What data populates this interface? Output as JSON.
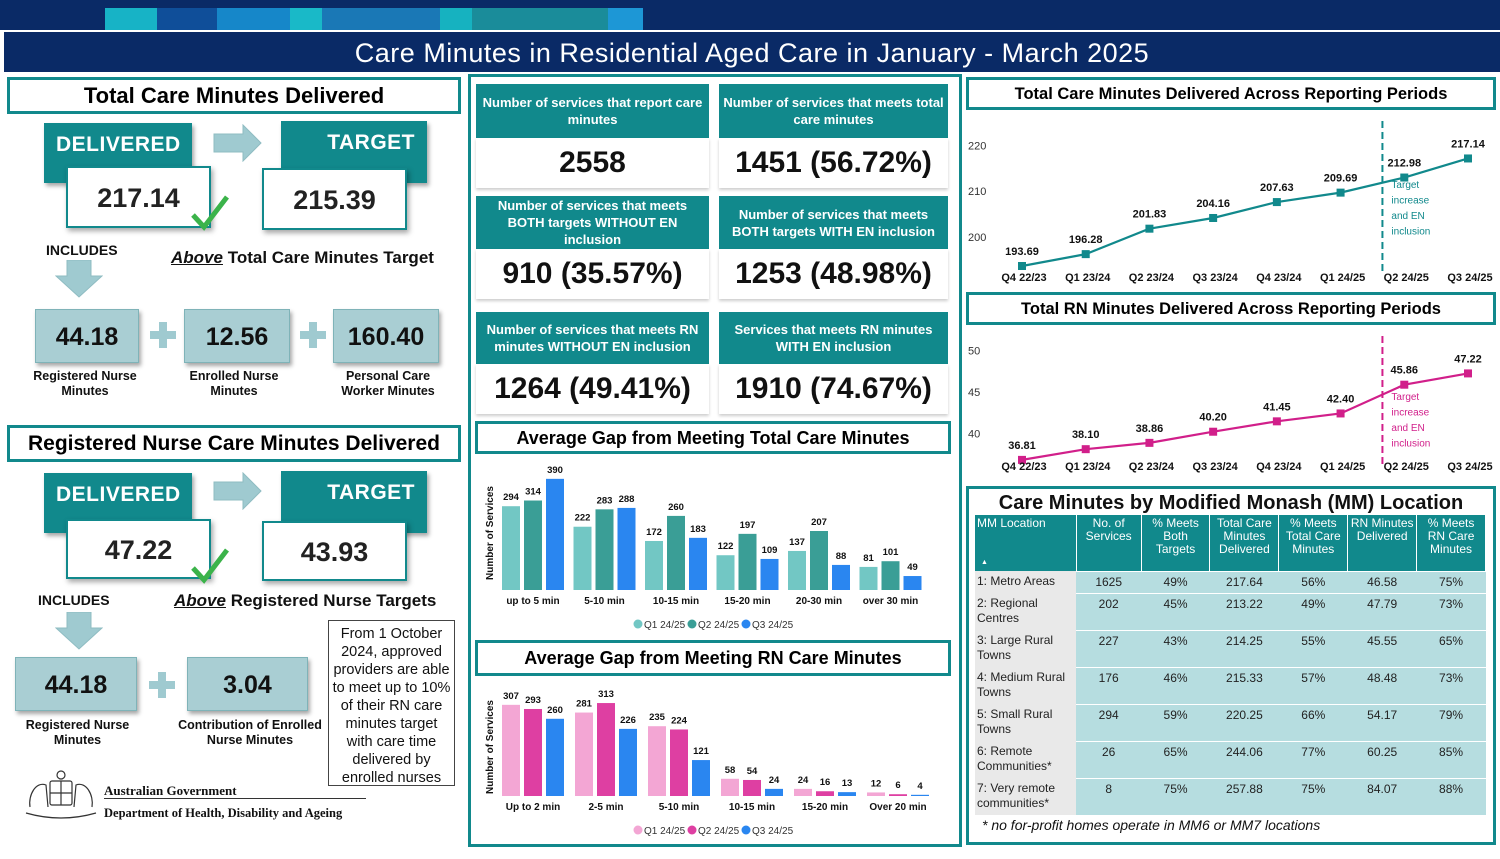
{
  "title": "Care Minutes in Residential Aged Care in January - March 2025",
  "total_section": {
    "header": "Total Care Minutes Delivered",
    "delivered_label": "DELIVERED",
    "target_label": "TARGET",
    "delivered_value": "217.14",
    "target_value": "215.39",
    "includes_label": "INCLUDES",
    "above_word": "Above",
    "above_rest": "Total Care Minutes Target",
    "components": [
      {
        "value": "44.18",
        "label": "Registered Nurse Minutes"
      },
      {
        "value": "12.56",
        "label": "Enrolled Nurse Minutes"
      },
      {
        "value": "160.40",
        "label": "Personal Care Worker Minutes"
      }
    ]
  },
  "rn_section": {
    "header": "Registered Nurse Care Minutes Delivered",
    "delivered_label": "DELIVERED",
    "target_label": "TARGET",
    "delivered_value": "47.22",
    "target_value": "43.93",
    "includes_label": "INCLUDES",
    "above_word": "Above",
    "above_rest": "Registered Nurse Targets",
    "components": [
      {
        "value": "44.18",
        "label": "Registered Nurse Minutes"
      },
      {
        "value": "3.04",
        "label": "Contribution of Enrolled Nurse Minutes"
      }
    ],
    "note": "From 1 October 2024, approved providers are able to meet up to 10% of their RN care minutes target with care time delivered by enrolled nurses"
  },
  "government": {
    "line1": "Australian Government",
    "line2": "Department of Health, Disability and Ageing"
  },
  "kpis": [
    {
      "label": "Number of services that report care minutes",
      "value": "2558"
    },
    {
      "label": "Number of services that meets total care minutes",
      "value": "1451 (56.72%)"
    },
    {
      "label": "Number of services that meets BOTH targets WITHOUT EN inclusion",
      "value": "910 (35.57%)"
    },
    {
      "label": "Number of services that meets BOTH targets WITH EN inclusion",
      "value": "1253 (48.98%)"
    },
    {
      "label": "Number of services that meets RN minutes WITHOUT EN inclusion",
      "value": "1264 (49.41%)"
    },
    {
      "label": "Services that meets RN minutes WITH EN inclusion",
      "value": "1910 (74.67%)"
    }
  ],
  "table": {
    "title": "Care Minutes by Modified Monash (MM) Location",
    "headers": [
      "MM Location",
      "No. of Services",
      "% Meets Both Targets",
      "Total Care Minutes Delivered",
      "% Meets Total Care Minutes",
      "RN Minutes Delivered",
      "% Meets RN Care Minutes"
    ],
    "sort_glyph": "▲",
    "rows": [
      [
        "1: Metro Areas",
        "1625",
        "49%",
        "217.64",
        "56%",
        "46.58",
        "75%"
      ],
      [
        "2: Regional Centres",
        "202",
        "45%",
        "213.22",
        "49%",
        "47.79",
        "73%"
      ],
      [
        "3: Large Rural Towns",
        "227",
        "43%",
        "214.25",
        "55%",
        "45.55",
        "65%"
      ],
      [
        "4: Medium Rural Towns",
        "176",
        "46%",
        "215.33",
        "57%",
        "48.48",
        "73%"
      ],
      [
        "5: Small Rural Towns",
        "294",
        "59%",
        "220.25",
        "66%",
        "54.17",
        "79%"
      ],
      [
        "6: Remote Communities*",
        "26",
        "65%",
        "244.06",
        "77%",
        "60.25",
        "85%"
      ],
      [
        "7: Very remote communities*",
        "8",
        "75%",
        "257.88",
        "75%",
        "84.07",
        "88%"
      ]
    ],
    "footnote": "* no for-profit homes operate in MM6 or MM7 locations"
  },
  "colors": {
    "teal": "#11898c",
    "navy": "#0a2a66",
    "pink": "#d11f8a"
  },
  "chart_data": [
    {
      "type": "line",
      "title": "Total Care Minutes Delivered Across Reporting Periods",
      "categories": [
        "Q4 22/23",
        "Q1 23/24",
        "Q2 23/24",
        "Q3 23/24",
        "Q4 23/24",
        "Q1 24/25",
        "Q2 24/25",
        "Q3 24/25"
      ],
      "values": [
        193.69,
        196.28,
        201.83,
        204.16,
        207.63,
        209.69,
        212.98,
        217.14
      ],
      "value_labels": [
        "193.69",
        "196.28",
        "201.83",
        "204.16",
        "207.63",
        "209.69",
        "212.98",
        "217.14"
      ],
      "yticks": [
        "200",
        "210",
        "220"
      ],
      "ylim": [
        195,
        224
      ],
      "annotation": "Target increase and EN inclusion",
      "color": "#11898c"
    },
    {
      "type": "line",
      "title": "Total RN Minutes Delivered Across Reporting Periods",
      "categories": [
        "Q4 22/23",
        "Q1 23/24",
        "Q2 23/24",
        "Q3 23/24",
        "Q4 23/24",
        "Q1 24/25",
        "Q2 24/25",
        "Q3 24/25"
      ],
      "values": [
        36.81,
        38.1,
        38.86,
        40.2,
        41.45,
        42.4,
        45.86,
        47.22
      ],
      "value_labels": [
        "36.81",
        "38.10",
        "38.86",
        "40.20",
        "41.45",
        "42.40",
        "45.86",
        "47.22"
      ],
      "yticks": [
        "40",
        "45",
        "50"
      ],
      "ylim": [
        38,
        51
      ],
      "annotation": "Target increase and EN inclusion",
      "color": "#d11f8a"
    },
    {
      "type": "bar",
      "title": "Average Gap from Meeting Total Care Minutes",
      "ylabel": "Number of Services",
      "categories": [
        "up to 5 min",
        "5-10 min",
        "10-15 min",
        "15-20 min",
        "20-30 min",
        "over 30 min"
      ],
      "series": [
        {
          "name": "Q1 24/25",
          "color": "#72c7c4",
          "values": [
            294,
            222,
            172,
            122,
            137,
            81
          ]
        },
        {
          "name": "Q2 24/25",
          "color": "#3a9e96",
          "values": [
            314,
            283,
            260,
            197,
            207,
            101
          ]
        },
        {
          "name": "Q3 24/25",
          "color": "#2a86f0",
          "values": [
            390,
            288,
            183,
            109,
            88,
            49
          ]
        }
      ],
      "ymax": 400
    },
    {
      "type": "bar",
      "title": "Average Gap from Meeting RN Care Minutes",
      "ylabel": "Number of Services",
      "categories": [
        "Up to 2 min",
        "2-5 min",
        "5-10 min",
        "10-15 min",
        "15-20 min",
        "Over 20 min"
      ],
      "series": [
        {
          "name": "Q1 24/25",
          "color": "#f3a6d4",
          "values": [
            307,
            281,
            235,
            58,
            24,
            12
          ]
        },
        {
          "name": "Q2 24/25",
          "color": "#de3fa2",
          "values": [
            293,
            313,
            224,
            54,
            16,
            6
          ]
        },
        {
          "name": "Q3 24/25",
          "color": "#2a86f0",
          "values": [
            260,
            226,
            121,
            24,
            13,
            4
          ]
        }
      ],
      "ymax": 330
    }
  ]
}
